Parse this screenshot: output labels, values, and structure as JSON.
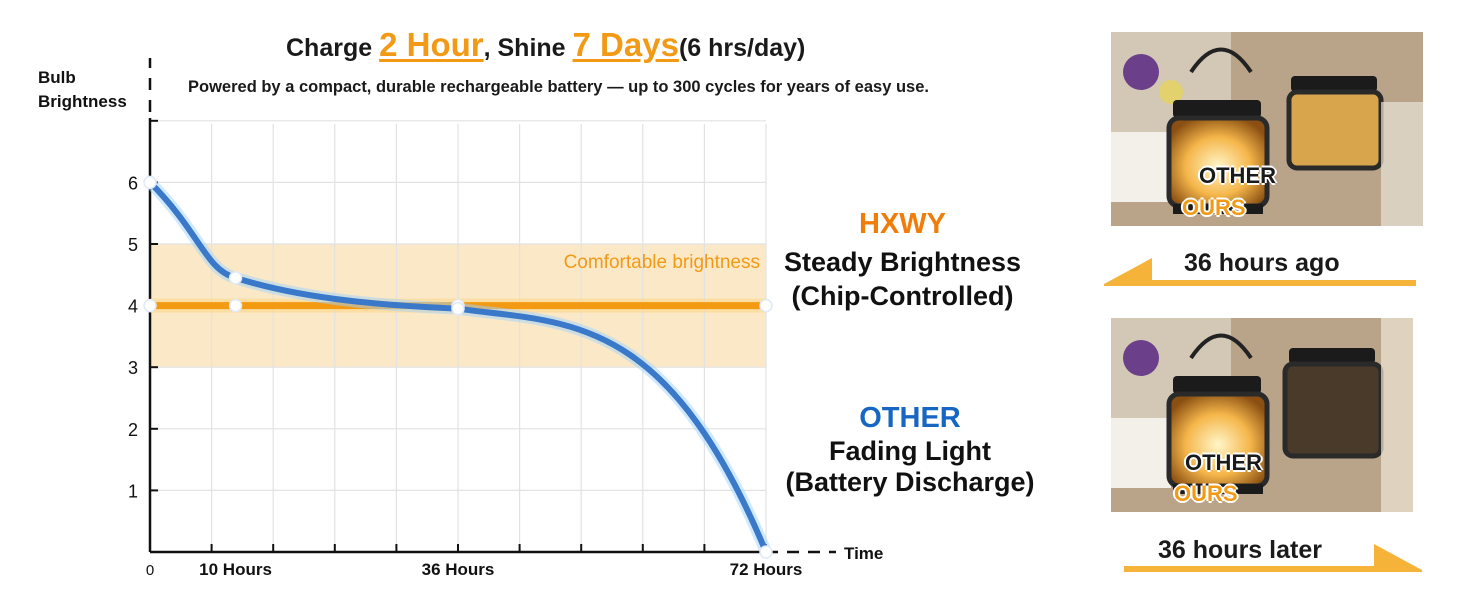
{
  "header": {
    "charge_word": "Charge ",
    "charge_value": "2 Hour",
    "shine_word": ", Shine ",
    "shine_value": "7 Days",
    "per_day": "(6 hrs/day)",
    "subtitle": "Powered by a compact, durable rechargeable battery — up to 300 cycles for years of easy use."
  },
  "colors": {
    "accent_orange": "#f29a16",
    "hxwy_orange": "#f07d0a",
    "other_blue": "#1766c4",
    "band_fill": "#fbe8c6"
  },
  "chart_data": {
    "type": "line",
    "ylabel": "Bulb Brightness",
    "xlabel": "Time",
    "yticks": [
      "1",
      "2",
      "3",
      "4",
      "5",
      "6"
    ],
    "ylim": [
      0,
      6.5
    ],
    "xlim": [
      0,
      72
    ],
    "x_tick_labels": [
      {
        "x": 0,
        "label": "0"
      },
      {
        "x": 10,
        "label": "10 Hours"
      },
      {
        "x": 36,
        "label": "36 Hours"
      },
      {
        "x": 72,
        "label": "72 Hours"
      }
    ],
    "grid": true,
    "band": {
      "from": 3,
      "to": 5,
      "label": "Comfortable brightness"
    },
    "series": [
      {
        "name": "HXWY",
        "color": "#f39a12",
        "points": [
          [
            0,
            4
          ],
          [
            10,
            4
          ],
          [
            36,
            4
          ],
          [
            72,
            4
          ]
        ]
      },
      {
        "name": "OTHER",
        "color": "#3a78c9",
        "points": [
          [
            0,
            6
          ],
          [
            10,
            4.45
          ],
          [
            36,
            3.95
          ],
          [
            52,
            3.3
          ],
          [
            62,
            2.2
          ],
          [
            72,
            0
          ]
        ]
      }
    ]
  },
  "legend": {
    "hxwy_brand": "HXWY",
    "hxwy_line1": "Steady Brightness",
    "hxwy_line2": "(Chip-Controlled)",
    "other_brand": "OTHER",
    "other_line1": "Fading Light",
    "other_line2": "(Battery Discharge)"
  },
  "comparison": {
    "before": {
      "ours": "OURS",
      "other": "OTHER",
      "caption": "36 hours ago"
    },
    "after": {
      "ours": "OURS",
      "other": "OTHER",
      "caption": "36 hours later"
    }
  }
}
